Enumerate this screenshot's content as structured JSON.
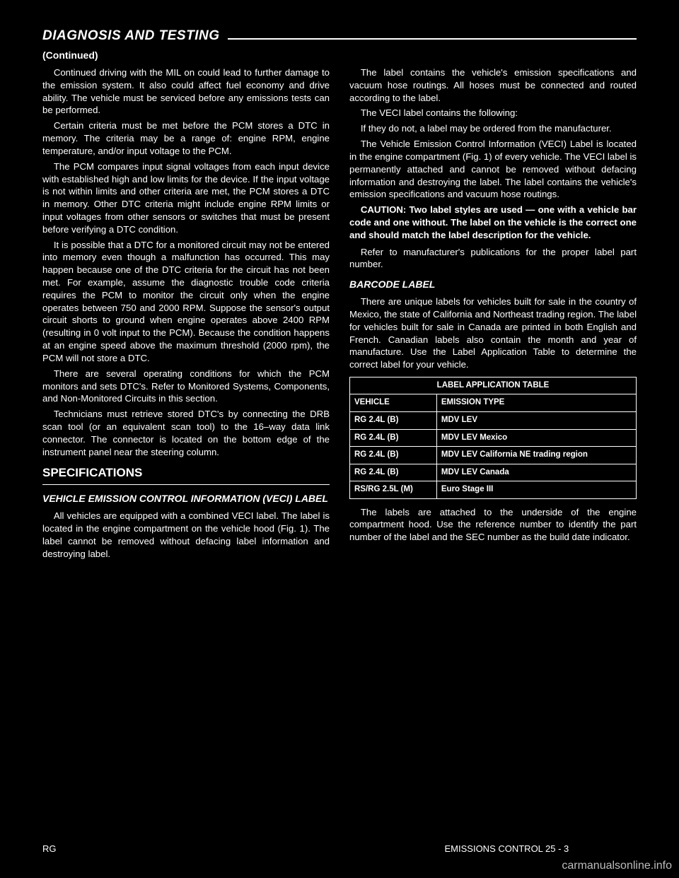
{
  "header": {
    "title": "DIAGNOSIS AND TESTING",
    "subtitle": "(Continued)"
  },
  "body": {
    "p1": "Continued driving with the MIL on could lead to further damage to the emission system. It also could affect fuel economy and drive ability. The vehicle must be serviced before any emissions tests can be performed.",
    "p2": "Certain criteria must be met before the PCM stores a DTC in memory. The criteria may be a range of: engine RPM, engine temperature, and/or input voltage to the PCM.",
    "p3": "The PCM compares input signal voltages from each input device with established high and low limits for the device. If the input voltage is not within limits and other criteria are met, the PCM stores a DTC in memory. Other DTC criteria might include engine RPM limits or input voltages from other sensors or switches that must be present before verifying a DTC condition.",
    "p4": "It is possible that a DTC for a monitored circuit may not be entered into memory even though a malfunction has occurred. This may happen because one of the DTC criteria for the circuit has not been met. For example, assume the diagnostic trouble code criteria requires the PCM to monitor the circuit only when the engine operates between 750 and 2000 RPM. Suppose the sensor's output circuit shorts to ground when engine operates above 2400 RPM (resulting in 0 volt input to the PCM). Because the condition happens at an engine speed above the maximum threshold (2000 rpm), the PCM will not store a DTC.",
    "p5": "There are several operating conditions for which the PCM monitors and sets DTC's. Refer to Monitored Systems, Components, and Non-Monitored Circuits in this section.",
    "p6": "Technicians must retrieve stored DTC's by connecting the DRB scan tool (or an equivalent scan tool) to the 16–way data link connector. The connector is located on the bottom edge of the instrument panel near the steering column.",
    "sectionTitle": "SPECIFICATIONS",
    "vecTitle": "VEHICLE EMISSION CONTROL INFORMATION (VECI) LABEL",
    "p7": "All vehicles are equipped with a combined VECI label. The label is located in the engine compartment on the vehicle hood (Fig. 1). The label cannot be removed without defacing label information and destroying label.",
    "p8": "The label contains the vehicle's emission specifications and vacuum hose routings. All hoses must be connected and routed according to the label.",
    "p9": "The VECI label contains the following:",
    "p10": "If they do not, a label may be ordered from the manufacturer.",
    "p11": "The Vehicle Emission Control Information (VECI) Label is located in the engine compartment (Fig. 1) of every vehicle. The VECI label is permanently attached and cannot be removed without defacing information and destroying the label. The label contains the vehicle's emission specifications and vacuum hose routings.",
    "caution_label": "CAUTION",
    "caution_text": "CAUTION: Two label styles are used — one with a vehicle bar code and one without. The label on the vehicle is the correct one and should match the label description for the vehicle.",
    "p12": "Refer to manufacturer's publications for the proper label part number.",
    "barcodeTitle": "BARCODE LABEL",
    "p13": "There are unique labels for vehicles built for sale in the country of Mexico, the state of California and Northeast trading region. The label for vehicles built for sale in Canada are printed in both English and French. Canadian labels also contain the month and year of manufacture. Use the Label Application Table to determine the correct label for your vehicle.",
    "p14": "The labels are attached to the underside of the engine compartment hood. Use the reference number to identify the part number of the label and the SEC number as the build date indicator."
  },
  "table": {
    "title": "LABEL APPLICATION TABLE",
    "col1": "VEHICLE",
    "col2": "EMISSION TYPE",
    "rows": [
      [
        "RG 2.4L (B)",
        "MDV LEV"
      ],
      [
        "RG 2.4L (B)",
        "MDV LEV Mexico"
      ],
      [
        "RG 2.4L (B)",
        "MDV LEV California NE trading region"
      ],
      [
        "RG 2.4L (B)",
        "MDV LEV Canada"
      ],
      [
        "RS/RG 2.5L (M)",
        "Euro Stage III"
      ]
    ]
  },
  "footer": {
    "left": "RG",
    "right": "EMISSIONS CONTROL   25 - 3"
  },
  "watermark": "carmanualsonline.info"
}
